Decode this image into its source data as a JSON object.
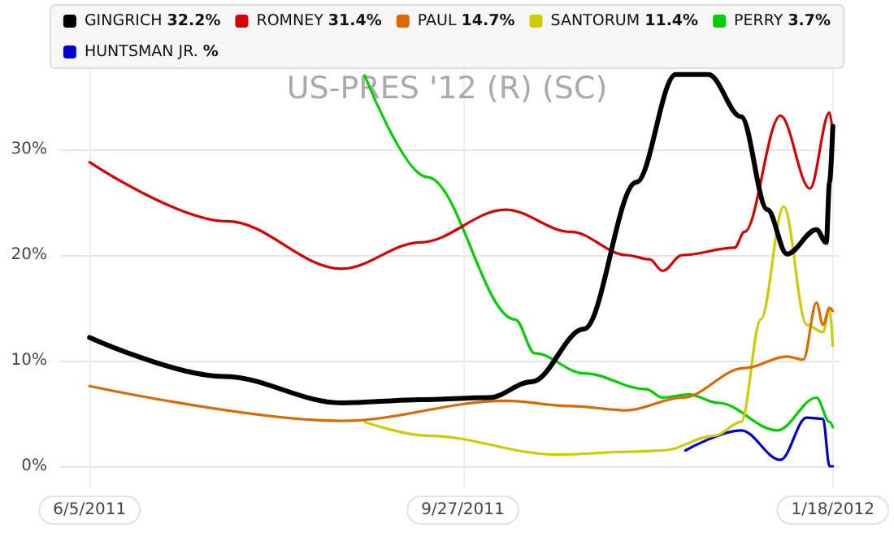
{
  "chart_data": {
    "type": "line",
    "title": "US-PRES '12 (R) (SC)",
    "legend": "top",
    "grid": true,
    "marker": "none",
    "line_style": "solid",
    "xlim": [
      "2011-05-27",
      "2012-01-20"
    ],
    "xticks": [
      {
        "value": "2011-06-05",
        "label": "6/5/2011"
      },
      {
        "value": "2011-09-27",
        "label": "9/27/2011"
      },
      {
        "value": "2012-01-18",
        "label": "1/18/2012"
      }
    ],
    "ylim": [
      -2,
      38
    ],
    "yticks": [
      {
        "value": 0,
        "label": "0%"
      },
      {
        "value": 10,
        "label": "10%"
      },
      {
        "value": 20,
        "label": "20%"
      },
      {
        "value": 30,
        "label": "30%"
      }
    ],
    "series": [
      {
        "name": "GINGRICH 32.2%",
        "color": "#000000",
        "x": [
          "2011-06-05",
          "2011-07-16",
          "2011-08-21",
          "2011-09-14",
          "2011-10-05",
          "2011-10-18",
          "2011-11-03",
          "2011-11-19",
          "2011-12-01",
          "2011-12-11",
          "2011-12-21",
          "2011-12-29",
          "2012-01-04",
          "2012-01-13",
          "2012-01-16",
          "2012-01-17",
          "2012-01-18"
        ],
        "values": [
          12.2,
          8.5,
          6.0,
          6.3,
          6.5,
          8.0,
          13.0,
          26.9,
          37.1,
          37.1,
          33.1,
          24.3,
          20.1,
          22.4,
          21.2,
          26.9,
          32.2
        ]
      },
      {
        "name": "ROMNEY 31.4%",
        "color": "#d40000",
        "x": [
          "2011-06-05",
          "2011-07-17",
          "2011-08-21",
          "2011-09-14",
          "2011-10-10",
          "2011-10-30",
          "2011-11-16",
          "2011-11-23",
          "2011-11-27",
          "2011-12-03",
          "2011-12-19",
          "2011-12-22",
          "2012-01-02",
          "2012-01-11",
          "2012-01-17",
          "2012-01-18"
        ],
        "values": [
          28.8,
          23.2,
          18.7,
          21.2,
          24.3,
          22.2,
          20.0,
          19.6,
          18.5,
          20.0,
          20.7,
          22.2,
          33.2,
          26.3,
          33.5,
          31.4
        ]
      },
      {
        "name": "PAUL 14.7%",
        "color": "#d86a00",
        "x": [
          "2011-06-05",
          "2011-08-21",
          "2011-10-10",
          "2011-10-30",
          "2011-11-16",
          "2011-12-03",
          "2011-12-22",
          "2012-01-04",
          "2012-01-09",
          "2012-01-13",
          "2012-01-15",
          "2012-01-17",
          "2012-01-18"
        ],
        "values": [
          7.6,
          4.3,
          6.2,
          5.7,
          5.3,
          6.5,
          9.3,
          10.4,
          10.1,
          15.5,
          13.4,
          15.0,
          14.7
        ]
      },
      {
        "name": "SANTORUM 11.4%",
        "color": "#cccc00",
        "x": [
          "2011-08-28",
          "2011-09-16",
          "2011-10-26",
          "2011-11-19",
          "2011-11-27",
          "2011-12-13",
          "2011-12-21",
          "2011-12-27",
          "2012-01-03",
          "2012-01-10",
          "2012-01-15",
          "2012-01-17",
          "2012-01-18"
        ],
        "values": [
          4.2,
          2.9,
          1.1,
          1.4,
          1.5,
          2.9,
          4.2,
          13.9,
          24.6,
          13.4,
          12.7,
          15.0,
          11.4
        ]
      },
      {
        "name": "PERRY 3.7%",
        "color": "#00cc00",
        "x": [
          "2011-08-28",
          "2011-09-16",
          "2011-10-13",
          "2011-10-19",
          "2011-11-03",
          "2011-11-22",
          "2011-11-27",
          "2011-12-05",
          "2011-12-14",
          "2012-01-01",
          "2012-01-13",
          "2012-01-17",
          "2012-01-18"
        ],
        "values": [
          37.0,
          27.4,
          13.9,
          10.7,
          8.8,
          7.3,
          6.5,
          6.8,
          6.0,
          3.4,
          6.5,
          4.2,
          3.7
        ]
      },
      {
        "name": "HUNTSMAN JR. %",
        "color": "#0000cc",
        "x": [
          "2011-12-04",
          "2011-12-21",
          "2012-01-02",
          "2012-01-10",
          "2012-01-15",
          "2012-01-17",
          "2012-01-18"
        ],
        "values": [
          1.5,
          3.4,
          0.6,
          4.6,
          4.5,
          0.0,
          0.0
        ]
      }
    ]
  }
}
